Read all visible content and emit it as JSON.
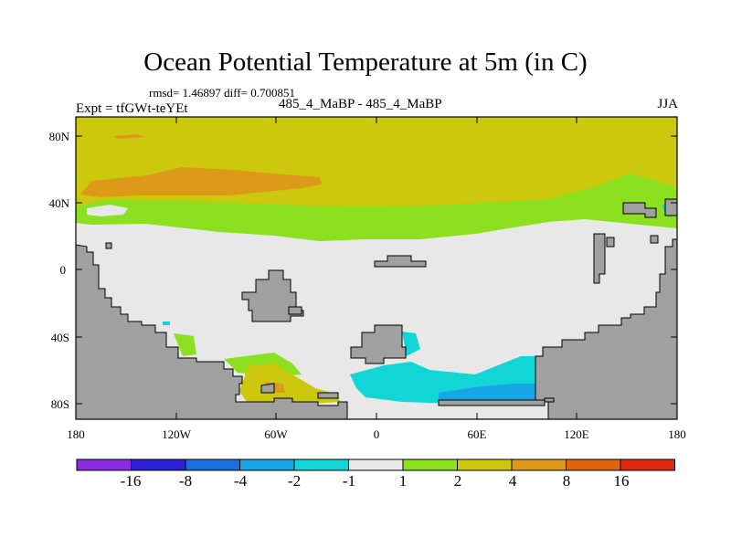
{
  "title": "Ocean Potential Temperature at 5m (in C)",
  "stats": "rmsd= 1.46897  diff= 0.700851",
  "experiment": "Expt = tfGWt-teYEt",
  "runs": "485_4_MaBP - 485_4_MaBP",
  "season": "JJA",
  "map": {
    "lon_range": [
      -180,
      180
    ],
    "lat_range": [
      -90,
      90
    ],
    "x_ticks": [
      "180",
      "120W",
      "60W",
      "0",
      "60E",
      "120E",
      "180"
    ],
    "y_ticks": [
      "80N",
      "40N",
      "0",
      "40S",
      "80S"
    ]
  },
  "colorbar": {
    "labels": [
      "-16",
      "-8",
      "-4",
      "-2",
      "-1",
      "1",
      "2",
      "4",
      "8",
      "16"
    ],
    "colors": [
      "#8a2be2",
      "#2b1fd8",
      "#1a6fe0",
      "#18a6e6",
      "#12d6d6",
      "#e8e8e8",
      "#8ce01f",
      "#ccc80e",
      "#dc9a18",
      "#e0640c",
      "#e02a10"
    ]
  },
  "palette": {
    "land": "#a0a0a0",
    "neutral": "#e8e8e8",
    "warm_2_4": "#ccc80e",
    "warm_1_2": "#8ce01f",
    "warm_4_8": "#dc9a18",
    "cool_1_2": "#12d6d6",
    "cool_2_4": "#18a6e6"
  }
}
